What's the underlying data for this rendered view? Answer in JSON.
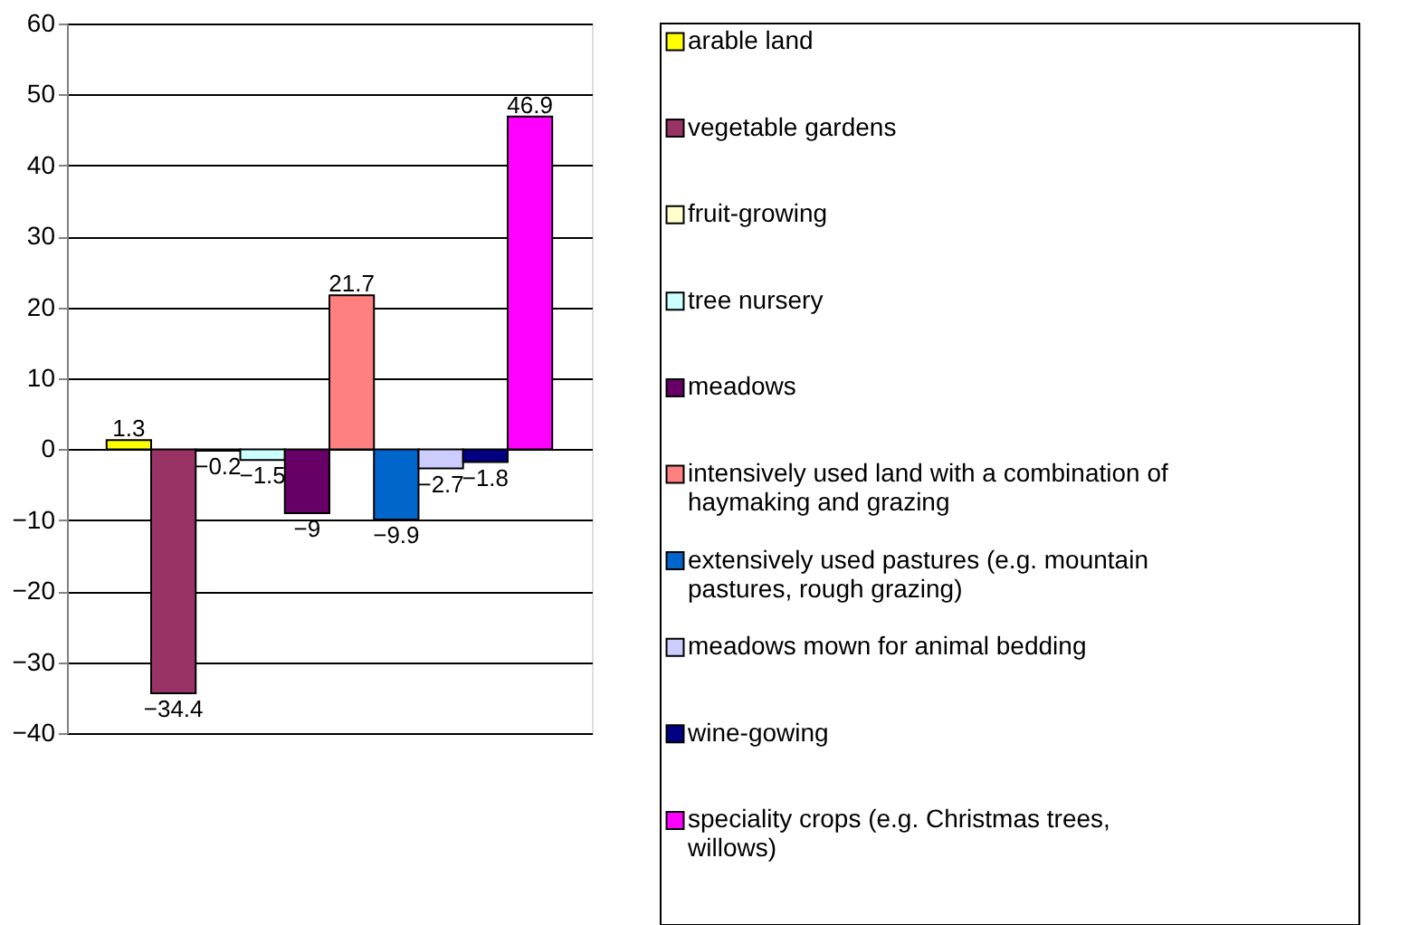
{
  "chart_data": {
    "type": "bar",
    "categories": [
      null
    ],
    "series": [
      {
        "name": "arable land",
        "color": "#ffff00",
        "values": [
          1.3
        ]
      },
      {
        "name": "vegetable gardens",
        "color": "#993366",
        "values": [
          -34.4
        ]
      },
      {
        "name": "fruit-growing",
        "color": "#ffffcc",
        "values": [
          -0.2
        ]
      },
      {
        "name": "tree nursery",
        "color": "#ccffff",
        "values": [
          -1.5
        ]
      },
      {
        "name": "meadows",
        "color": "#660066",
        "values": [
          -9
        ]
      },
      {
        "name": "intensively used land with a combination of haymaking and grazing",
        "color": "#ff8080",
        "values": [
          21.7
        ]
      },
      {
        "name": "extensively used pastures (e.g. mountain pastures, rough grazing)",
        "color": "#0066cc",
        "values": [
          -9.9
        ]
      },
      {
        "name": "meadows mown for animal bedding",
        "color": "#ccccff",
        "values": [
          -2.7
        ]
      },
      {
        "name": "wine-gowing",
        "color": "#000080",
        "values": [
          -1.8
        ]
      },
      {
        "name": "speciality crops (e.g. Christmas trees, willows)",
        "color": "#ff00ff",
        "values": [
          46.9
        ]
      }
    ],
    "ylim": [
      -40,
      60
    ],
    "yticks": [
      -40,
      -30,
      -20,
      -10,
      0,
      10,
      20,
      30,
      40,
      50,
      60
    ],
    "grid": "y",
    "legend": "right",
    "data_labels": true
  }
}
